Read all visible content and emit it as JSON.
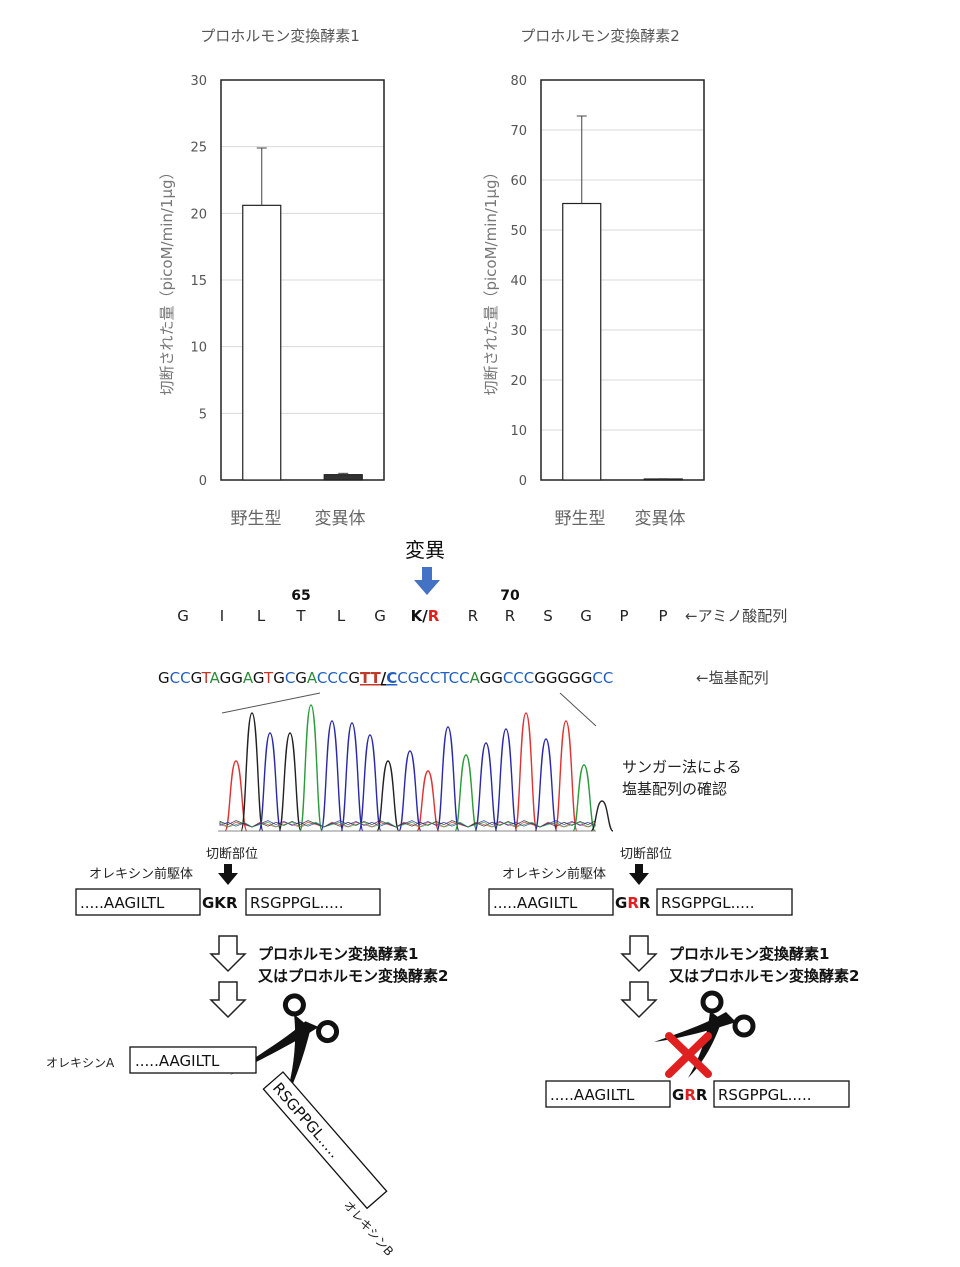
{
  "chart_data": [
    {
      "type": "bar",
      "title": "プロホルモン変換酵素1",
      "ylabel": "切断された量（picoM/min/1μg）",
      "categories": [
        "野生型",
        "変異体"
      ],
      "values": [
        20.6,
        0.4
      ],
      "errors": [
        4.3,
        0.1
      ],
      "ylim": [
        0,
        30
      ],
      "yticks": [
        0,
        5,
        10,
        15,
        20,
        25,
        30
      ],
      "bar_colors": [
        "#ffffff",
        "#333333"
      ],
      "grid": true
    },
    {
      "type": "bar",
      "title": "プロホルモン変換酵素2",
      "ylabel": "切断された量（picoM/min/1μg）",
      "categories": [
        "野生型",
        "変異体"
      ],
      "values": [
        55.3,
        0.2
      ],
      "errors": [
        17.5,
        0.05
      ],
      "ylim": [
        0,
        80
      ],
      "yticks": [
        0,
        10,
        20,
        30,
        40,
        50,
        60,
        70,
        80
      ],
      "bar_colors": [
        "#ffffff",
        "#333333"
      ],
      "grid": true
    }
  ],
  "mutation": {
    "label": "変異",
    "pos_65": "65",
    "pos_70": "70",
    "amino_acids": [
      "G",
      "I",
      "L",
      "T",
      "L",
      "G"
    ],
    "mut_wt": "K",
    "mut_slash": "/",
    "mut_new": "R",
    "amino_tail": [
      "R",
      "R",
      "S",
      "G",
      "P",
      "P"
    ],
    "amino_caption": "←アミノ酸配列",
    "dna": [
      {
        "t": "G",
        "c": "#111111"
      },
      {
        "t": "CC",
        "c": "#1f5fbf"
      },
      {
        "t": "G",
        "c": "#111111"
      },
      {
        "t": "T",
        "c": "#c0392b"
      },
      {
        "t": "A",
        "c": "#2e8b3a"
      },
      {
        "t": "GG",
        "c": "#111111"
      },
      {
        "t": "A",
        "c": "#2e8b3a"
      },
      {
        "t": "G",
        "c": "#111111"
      },
      {
        "t": "T",
        "c": "#c0392b"
      },
      {
        "t": "G",
        "c": "#111111"
      },
      {
        "t": "C",
        "c": "#1f5fbf"
      },
      {
        "t": "G",
        "c": "#111111"
      },
      {
        "t": "A",
        "c": "#2e8b3a"
      },
      {
        "t": "CCC",
        "c": "#1f5fbf"
      },
      {
        "t": "G",
        "c": "#111111"
      },
      {
        "t": "TT",
        "c": "#c0392b"
      },
      {
        "t": "/",
        "c": "#111111"
      },
      {
        "t": "C",
        "c": "#1f5fbf"
      },
      {
        "t": "CG",
        "c": "#1f5fbf"
      },
      {
        "t": "CCTCC",
        "c": "#1f5fbf"
      },
      {
        "t": "A",
        "c": "#2e8b3a"
      },
      {
        "t": "GG",
        "c": "#111111"
      },
      {
        "t": "CCC",
        "c": "#1f5fbf"
      },
      {
        "t": "GGGGG",
        "c": "#111111"
      },
      {
        "t": "CC",
        "c": "#1f5fbf"
      }
    ],
    "dna_caption": "←塩基配列",
    "sanger_caption_1": "サンガー法による",
    "sanger_caption_2": "塩基配列の確認"
  },
  "cleavage": {
    "site_label": "切断部位",
    "precursor_label": "オレキシン前駆体",
    "left_seq": ".....AAGILTL",
    "wt_motif_1": "GK",
    "wt_motif_2": "R",
    "mut_motif_1": "G",
    "mut_motif_2": "R",
    "mut_motif_3": "R",
    "right_seq": "RSGPPGL.....",
    "enzyme_line_1": "プロホルモン変換酵素1",
    "enzyme_line_2": "又はプロホルモン変換酵素2",
    "product_a_label": "オレキシンA",
    "product_a_seq": ".....AAGILTL",
    "product_b_seq": "RSGPPGL.....",
    "product_b_label": "オレキシンB",
    "mut_bottom_left": ".....AAGILTL",
    "mut_bottom_right": "RSGPPGL....."
  }
}
